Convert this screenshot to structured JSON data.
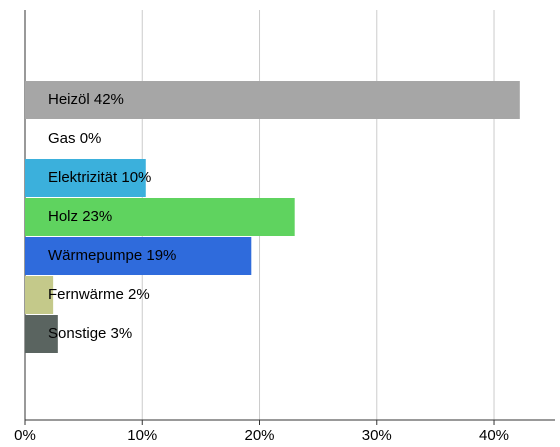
{
  "chart_data": {
    "type": "barh",
    "categories": [
      "Heizöl",
      "Gas",
      "Elektrizität",
      "Holz",
      "Wärmepumpe",
      "Fernwärme",
      "Sonstige"
    ],
    "values": [
      42.2,
      0,
      10.3,
      23.0,
      19.3,
      2.4,
      2.8
    ],
    "value_labels": [
      "42%",
      "0%",
      "10%",
      "23%",
      "19%",
      "2%",
      "3%"
    ],
    "colors": [
      "#a6a6a6",
      "#ffffff",
      "#3bb0dc",
      "#5fd35f",
      "#2f6bdc",
      "#c4c98a",
      "#5a6460"
    ],
    "xlim": [
      0,
      45.2
    ],
    "xticks": [
      {
        "value": 0,
        "label": "0%"
      },
      {
        "value": 10,
        "label": "10%"
      },
      {
        "value": 20,
        "label": "20%"
      },
      {
        "value": 30,
        "label": "30%"
      },
      {
        "value": 40,
        "label": "40%"
      }
    ],
    "grid": true
  }
}
